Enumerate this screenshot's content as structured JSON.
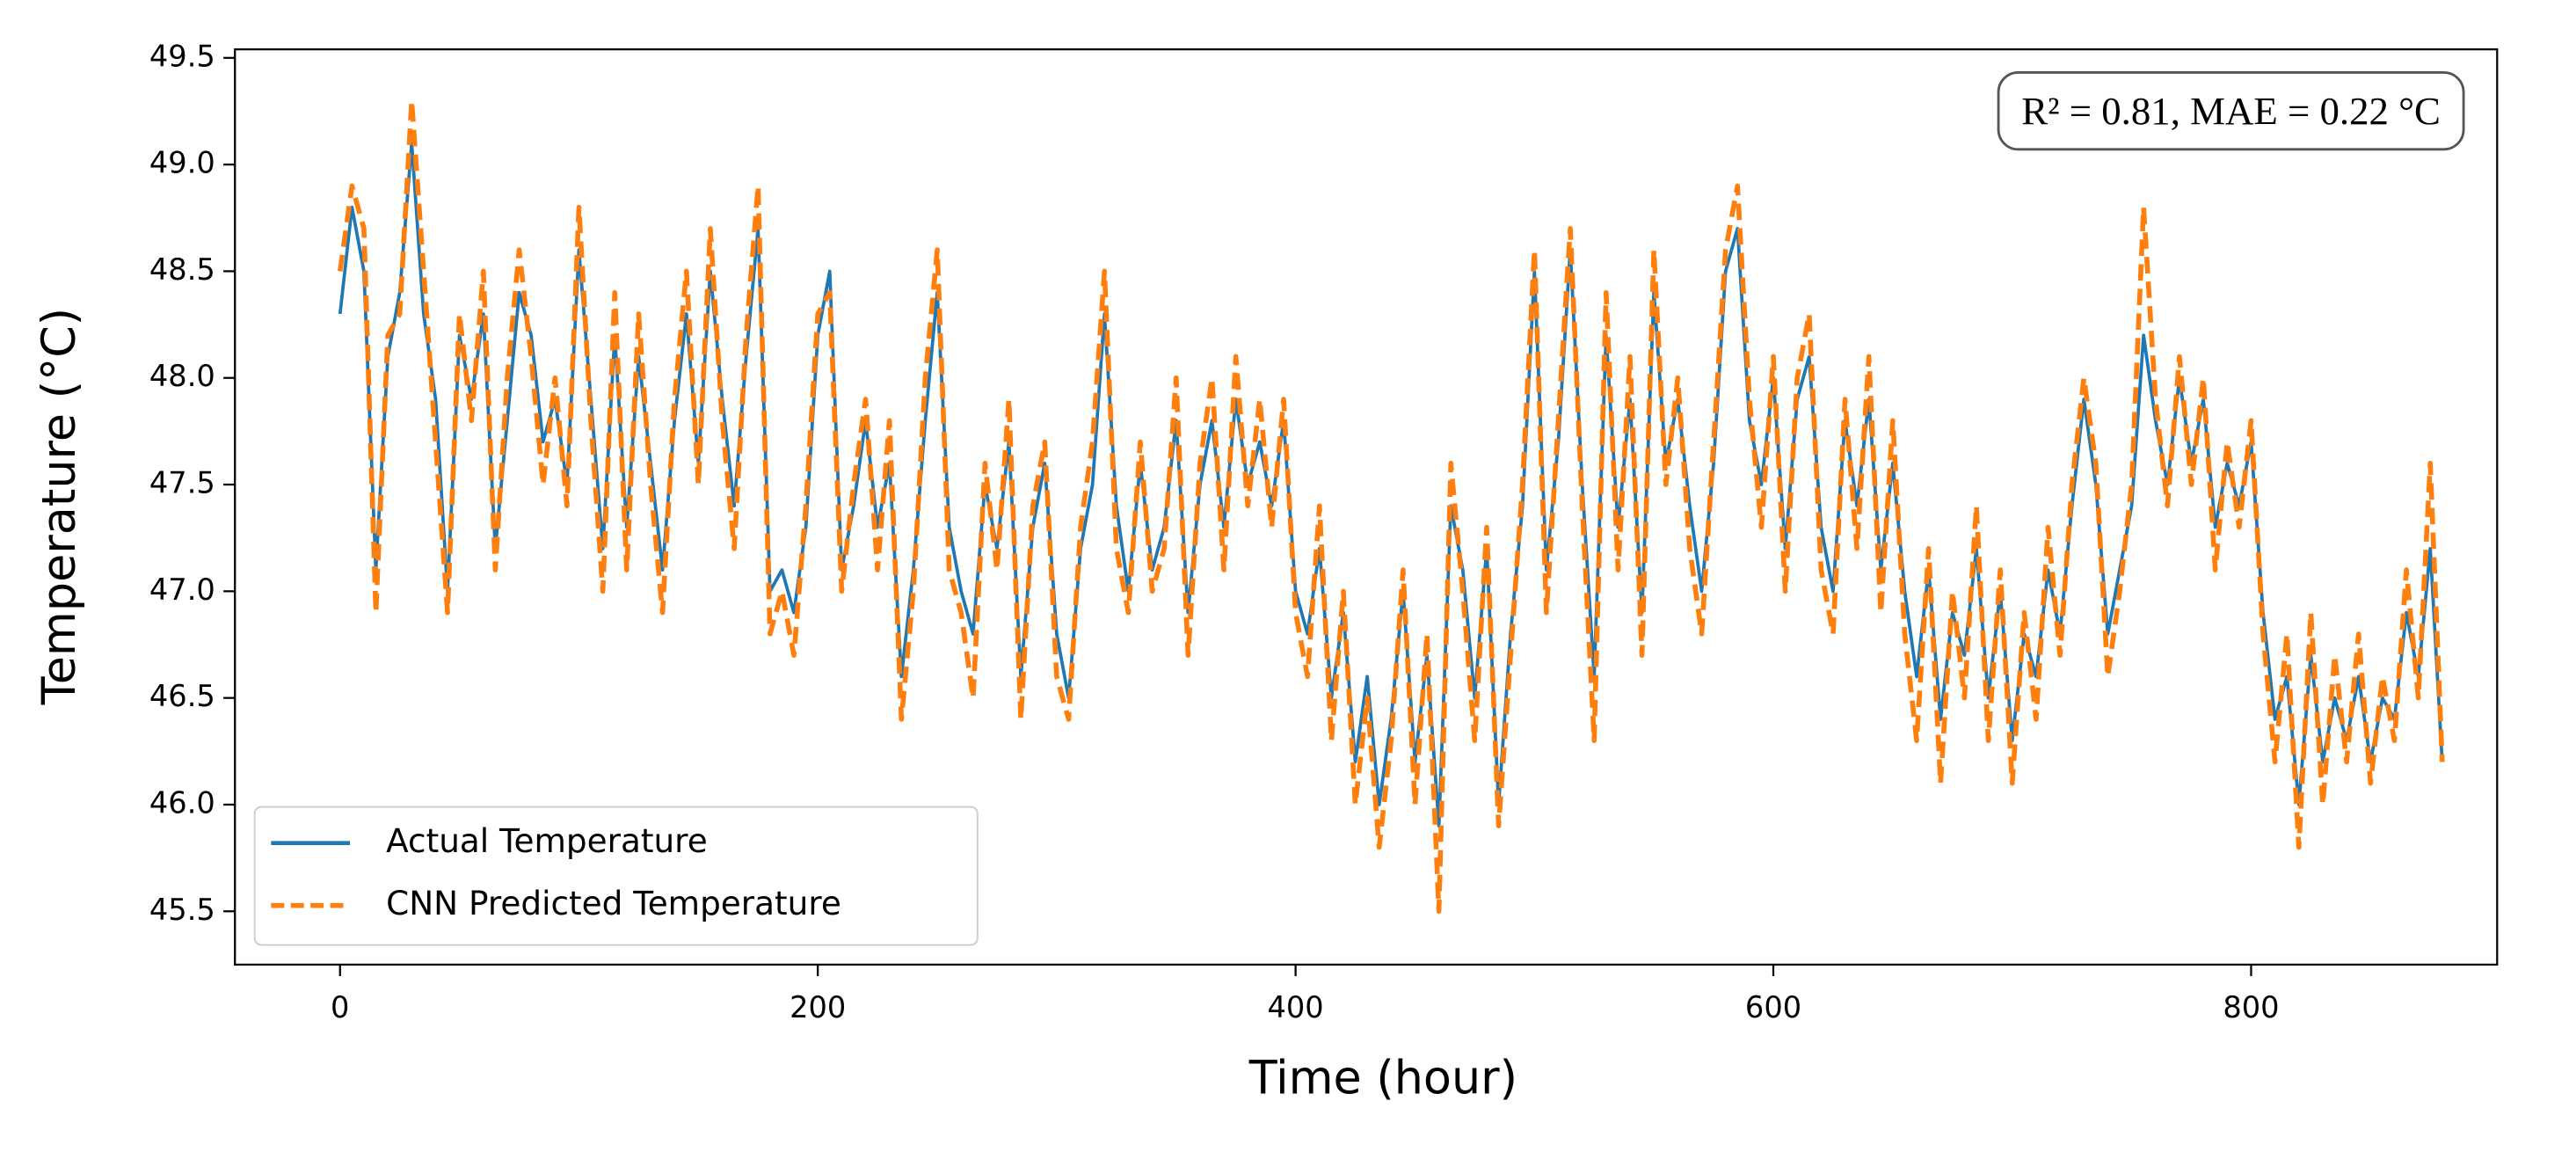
{
  "chart_data": {
    "type": "line",
    "xlabel": "Time (hour)",
    "ylabel": "Temperature (°C)",
    "annotation": "R² = 0.81, MAE = 0.22 °C",
    "legend": "lower left",
    "xlim": [
      -44,
      903
    ],
    "ylim": [
      45.25,
      49.54
    ],
    "xticks": [
      0,
      200,
      400,
      600,
      800
    ],
    "yticks": [
      45.5,
      {
        "value": 46,
        "label": "46.0"
      },
      46.5,
      {
        "value": 47,
        "label": "47.0"
      },
      47.5,
      {
        "value": 48,
        "label": "48.0"
      },
      48.5,
      {
        "value": 49,
        "label": "49.0"
      },
      49.5
    ],
    "x": [
      0,
      5,
      10,
      15,
      20,
      25,
      30,
      35,
      40,
      45,
      50,
      55,
      60,
      65,
      70,
      75,
      80,
      85,
      90,
      95,
      100,
      105,
      110,
      115,
      120,
      125,
      130,
      135,
      140,
      145,
      150,
      155,
      160,
      165,
      170,
      175,
      180,
      185,
      190,
      195,
      200,
      205,
      210,
      215,
      220,
      225,
      230,
      235,
      240,
      245,
      250,
      255,
      260,
      265,
      270,
      275,
      280,
      285,
      290,
      295,
      300,
      305,
      310,
      315,
      320,
      325,
      330,
      335,
      340,
      345,
      350,
      355,
      360,
      365,
      370,
      375,
      380,
      385,
      390,
      395,
      400,
      405,
      410,
      415,
      420,
      425,
      430,
      435,
      440,
      445,
      450,
      455,
      460,
      465,
      470,
      475,
      480,
      485,
      490,
      495,
      500,
      505,
      510,
      515,
      520,
      525,
      530,
      535,
      540,
      545,
      550,
      555,
      560,
      565,
      570,
      575,
      580,
      585,
      590,
      595,
      600,
      605,
      610,
      615,
      620,
      625,
      630,
      635,
      640,
      645,
      650,
      655,
      660,
      665,
      670,
      675,
      680,
      685,
      690,
      695,
      700,
      705,
      710,
      715,
      720,
      725,
      730,
      735,
      740,
      745,
      750,
      755,
      760,
      765,
      770,
      775,
      780,
      785,
      790,
      795,
      800,
      805,
      810,
      815,
      820,
      825,
      830,
      835,
      840,
      845,
      850,
      855,
      860,
      865,
      870,
      875,
      880
    ],
    "series": [
      {
        "name": "Actual Temperature",
        "color": "#1f77b4",
        "dash": false,
        "values": [
          48.3,
          48.8,
          48.5,
          47.1,
          48.1,
          48.4,
          49.1,
          48.3,
          47.9,
          47.0,
          48.2,
          47.9,
          48.3,
          47.2,
          47.8,
          48.4,
          48.2,
          47.7,
          47.9,
          47.5,
          48.6,
          47.9,
          47.2,
          48.2,
          47.3,
          48.1,
          47.6,
          47.1,
          47.8,
          48.3,
          47.6,
          48.5,
          47.9,
          47.4,
          48.1,
          48.7,
          47.0,
          47.1,
          46.9,
          47.3,
          48.2,
          48.5,
          47.1,
          47.4,
          47.8,
          47.3,
          47.6,
          46.6,
          47.1,
          47.8,
          48.4,
          47.3,
          47.0,
          46.8,
          47.5,
          47.2,
          47.7,
          46.6,
          47.3,
          47.6,
          46.8,
          46.5,
          47.2,
          47.5,
          48.3,
          47.4,
          47.0,
          47.6,
          47.1,
          47.3,
          47.8,
          46.9,
          47.5,
          47.8,
          47.3,
          47.9,
          47.5,
          47.7,
          47.4,
          47.8,
          47.0,
          46.8,
          47.2,
          46.5,
          46.9,
          46.2,
          46.6,
          46.0,
          46.4,
          47.0,
          46.2,
          46.7,
          45.9,
          47.4,
          47.1,
          46.5,
          47.2,
          46.0,
          46.8,
          47.4,
          48.5,
          47.1,
          47.7,
          48.6,
          47.5,
          46.6,
          48.2,
          47.3,
          47.9,
          46.9,
          48.4,
          47.6,
          47.9,
          47.4,
          47.0,
          47.6,
          48.5,
          48.7,
          47.8,
          47.5,
          48.0,
          47.2,
          47.9,
          48.1,
          47.3,
          47.0,
          47.8,
          47.4,
          47.9,
          47.1,
          47.6,
          47.0,
          46.6,
          47.1,
          46.4,
          46.9,
          46.7,
          47.2,
          46.5,
          47.0,
          46.3,
          46.8,
          46.6,
          47.1,
          46.8,
          47.4,
          47.9,
          47.5,
          46.8,
          47.1,
          47.4,
          48.2,
          47.8,
          47.5,
          48.0,
          47.6,
          47.9,
          47.3,
          47.6,
          47.4,
          47.7,
          46.9,
          46.4,
          46.6,
          46.0,
          46.7,
          46.2,
          46.5,
          46.3,
          46.6,
          46.2,
          46.5,
          46.4,
          46.9,
          46.6,
          47.2,
          46.2
        ]
      },
      {
        "name": "CNN Predicted Temperature",
        "color": "#ff7f0e",
        "dash": true,
        "values": [
          48.5,
          48.9,
          48.7,
          46.9,
          48.2,
          48.3,
          49.3,
          48.5,
          47.7,
          46.9,
          48.3,
          47.8,
          48.5,
          47.1,
          48.0,
          48.6,
          48.1,
          47.5,
          48.0,
          47.4,
          48.8,
          47.8,
          47.0,
          48.4,
          47.1,
          48.3,
          47.5,
          46.9,
          47.9,
          48.5,
          47.5,
          48.7,
          47.8,
          47.2,
          48.2,
          48.9,
          46.8,
          47.0,
          46.7,
          47.4,
          48.3,
          48.4,
          47.0,
          47.5,
          47.9,
          47.1,
          47.8,
          46.4,
          47.0,
          48.0,
          48.6,
          47.1,
          46.9,
          46.5,
          47.6,
          47.1,
          47.9,
          46.4,
          47.4,
          47.7,
          46.6,
          46.4,
          47.3,
          47.7,
          48.5,
          47.2,
          46.9,
          47.7,
          47.0,
          47.2,
          48.0,
          46.7,
          47.6,
          48.0,
          47.1,
          48.1,
          47.4,
          47.9,
          47.3,
          47.9,
          46.9,
          46.6,
          47.4,
          46.3,
          47.0,
          46.0,
          46.5,
          45.8,
          46.3,
          47.1,
          46.0,
          46.8,
          45.5,
          47.6,
          47.0,
          46.3,
          47.3,
          45.9,
          46.7,
          47.5,
          48.6,
          46.9,
          47.8,
          48.7,
          47.4,
          46.3,
          48.4,
          47.1,
          48.1,
          46.7,
          48.6,
          47.5,
          48.0,
          47.2,
          46.8,
          47.7,
          48.6,
          48.9,
          47.9,
          47.3,
          48.1,
          47.0,
          48.0,
          48.3,
          47.1,
          46.8,
          47.9,
          47.2,
          48.1,
          46.9,
          47.8,
          46.8,
          46.3,
          47.2,
          46.1,
          47.0,
          46.5,
          47.4,
          46.3,
          47.1,
          46.1,
          46.9,
          46.4,
          47.3,
          46.7,
          47.5,
          48.0,
          47.6,
          46.6,
          47.0,
          47.5,
          48.8,
          47.9,
          47.4,
          48.1,
          47.5,
          48.0,
          47.1,
          47.7,
          47.3,
          47.8,
          46.8,
          46.2,
          46.8,
          45.8,
          46.9,
          46.0,
          46.7,
          46.2,
          46.8,
          46.1,
          46.6,
          46.3,
          47.1,
          46.5,
          47.6,
          46.2
        ]
      }
    ]
  }
}
